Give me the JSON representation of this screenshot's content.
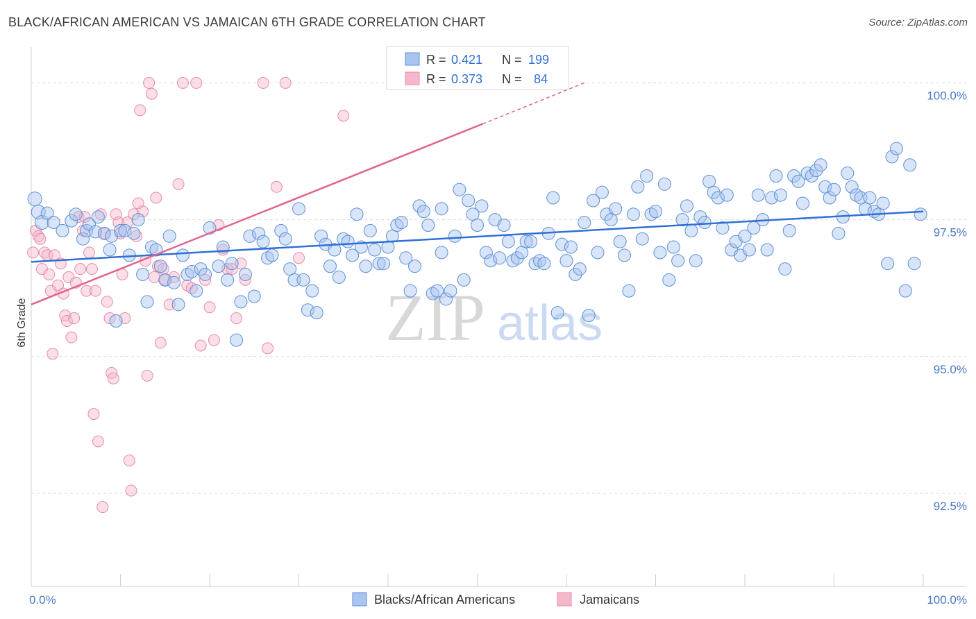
{
  "title": "BLACK/AFRICAN AMERICAN VS JAMAICAN 6TH GRADE CORRELATION CHART",
  "source": "Source: ZipAtlas.com",
  "watermark": {
    "zip": "ZIP",
    "atlas": "atlas"
  },
  "colors": {
    "blue_fill": "#a9c4ee",
    "blue_stroke": "#5b8fd9",
    "blue_line": "#2f6fd6",
    "pink_fill": "#f5b8cb",
    "pink_stroke": "#e98aa9",
    "pink_line": "#e0648e",
    "grid": "#d9d9d9",
    "tick_label": "#4a78c8"
  },
  "legend": {
    "rows": [
      {
        "r_label": "R =",
        "r_value": "0.421",
        "n_label": "N =",
        "n_value": "199"
      },
      {
        "r_label": "R =",
        "r_value": "0.373",
        "n_label": "N =",
        "n_value": "84"
      }
    ]
  },
  "chart_data": {
    "type": "scatter",
    "title": "BLACK/AFRICAN AMERICAN VS JAMAICAN 6TH GRADE CORRELATION CHART",
    "xlabel": "",
    "ylabel": "6th Grade",
    "xlim": [
      0,
      100
    ],
    "ylim": [
      90.8,
      100.5
    ],
    "x_tick_labels": [
      "0.0%",
      "100.0%"
    ],
    "y_ticks": [
      92.5,
      95.0,
      97.5,
      100.0
    ],
    "y_tick_labels": [
      "92.5%",
      "95.0%",
      "97.5%",
      "100.0%"
    ],
    "grid": "horizontal dashed",
    "legend_position": "top-center",
    "series": [
      {
        "name": "Blacks/African Americans",
        "color": "#5b8fd9",
        "R": 0.421,
        "N": 199,
        "trend": {
          "x": [
            0,
            100
          ],
          "y": [
            96.73,
            97.65
          ]
        },
        "points": [
          [
            0.4,
            97.88
          ],
          [
            0.8,
            97.64
          ],
          [
            1.2,
            97.45
          ],
          [
            1.8,
            97.62
          ],
          [
            2.5,
            97.45
          ],
          [
            3.5,
            97.3
          ],
          [
            4.5,
            97.48
          ],
          [
            5.0,
            97.6
          ],
          [
            5.8,
            97.15
          ],
          [
            6.2,
            97.3
          ],
          [
            6.5,
            97.42
          ],
          [
            7.5,
            97.55
          ],
          [
            7.2,
            97.28
          ],
          [
            8.2,
            97.25
          ],
          [
            9.0,
            97.2
          ],
          [
            10.0,
            97.3
          ],
          [
            10.5,
            97.3
          ],
          [
            11.5,
            97.25
          ],
          [
            12.0,
            97.5
          ],
          [
            8.8,
            96.95
          ],
          [
            9.5,
            95.65
          ],
          [
            11.0,
            96.85
          ],
          [
            12.5,
            96.5
          ],
          [
            13.0,
            96.0
          ],
          [
            13.5,
            97.0
          ],
          [
            14.0,
            96.95
          ],
          [
            14.5,
            96.65
          ],
          [
            15.0,
            96.4
          ],
          [
            15.5,
            97.2
          ],
          [
            16.0,
            96.35
          ],
          [
            16.5,
            95.95
          ],
          [
            17.0,
            96.85
          ],
          [
            17.5,
            96.5
          ],
          [
            18.0,
            96.55
          ],
          [
            18.5,
            96.2
          ],
          [
            19.0,
            96.6
          ],
          [
            19.5,
            96.5
          ],
          [
            20.0,
            97.35
          ],
          [
            21.0,
            96.65
          ],
          [
            21.5,
            97.0
          ],
          [
            22.0,
            96.4
          ],
          [
            22.5,
            96.7
          ],
          [
            23.0,
            95.3
          ],
          [
            23.5,
            96.0
          ],
          [
            24.0,
            96.5
          ],
          [
            24.5,
            97.2
          ],
          [
            25.0,
            96.1
          ],
          [
            25.5,
            97.25
          ],
          [
            26.0,
            97.1
          ],
          [
            26.5,
            96.8
          ],
          [
            27.0,
            96.85
          ],
          [
            28.0,
            97.3
          ],
          [
            28.5,
            97.15
          ],
          [
            29.0,
            96.6
          ],
          [
            29.5,
            96.4
          ],
          [
            30.0,
            97.7
          ],
          [
            30.5,
            96.4
          ],
          [
            31.0,
            95.85
          ],
          [
            31.5,
            96.2
          ],
          [
            32.0,
            95.8
          ],
          [
            32.5,
            97.2
          ],
          [
            33.0,
            97.05
          ],
          [
            33.5,
            96.65
          ],
          [
            34.0,
            96.95
          ],
          [
            34.5,
            96.45
          ],
          [
            35.0,
            97.15
          ],
          [
            35.5,
            97.1
          ],
          [
            36.0,
            96.85
          ],
          [
            36.5,
            97.6
          ],
          [
            37.0,
            97.0
          ],
          [
            37.5,
            96.65
          ],
          [
            38.0,
            97.3
          ],
          [
            38.5,
            96.95
          ],
          [
            39.0,
            96.7
          ],
          [
            39.5,
            96.7
          ],
          [
            40.0,
            97.0
          ],
          [
            40.5,
            97.2
          ],
          [
            41.0,
            97.4
          ],
          [
            41.5,
            97.45
          ],
          [
            42.0,
            96.8
          ],
          [
            42.5,
            96.2
          ],
          [
            43.0,
            96.65
          ],
          [
            43.5,
            97.75
          ],
          [
            44.0,
            97.65
          ],
          [
            44.5,
            97.4
          ],
          [
            45.0,
            96.15
          ],
          [
            45.5,
            96.2
          ],
          [
            46.0,
            97.7
          ],
          [
            46.5,
            96.05
          ],
          [
            47.0,
            96.2
          ],
          [
            46.0,
            96.9
          ],
          [
            47.5,
            97.2
          ],
          [
            48.0,
            98.05
          ],
          [
            48.5,
            96.4
          ],
          [
            49.0,
            97.85
          ],
          [
            49.5,
            97.6
          ],
          [
            50.0,
            97.4
          ],
          [
            50.5,
            97.75
          ],
          [
            51.0,
            96.9
          ],
          [
            51.5,
            96.75
          ],
          [
            52.0,
            97.5
          ],
          [
            52.5,
            96.8
          ],
          [
            53.0,
            97.4
          ],
          [
            53.5,
            97.1
          ],
          [
            54.0,
            96.75
          ],
          [
            54.5,
            96.8
          ],
          [
            55.0,
            96.9
          ],
          [
            55.5,
            97.1
          ],
          [
            56.0,
            97.1
          ],
          [
            56.5,
            96.7
          ],
          [
            57.0,
            96.75
          ],
          [
            57.5,
            96.7
          ],
          [
            58.0,
            97.25
          ],
          [
            58.5,
            97.9
          ],
          [
            59.0,
            95.8
          ],
          [
            59.5,
            97.05
          ],
          [
            60.0,
            96.75
          ],
          [
            60.5,
            97.0
          ],
          [
            61.0,
            96.5
          ],
          [
            61.5,
            96.6
          ],
          [
            62.0,
            97.45
          ],
          [
            62.5,
            95.75
          ],
          [
            63.0,
            97.85
          ],
          [
            63.5,
            96.9
          ],
          [
            64.0,
            98.0
          ],
          [
            64.5,
            97.6
          ],
          [
            65.0,
            97.5
          ],
          [
            65.5,
            97.7
          ],
          [
            66.0,
            97.1
          ],
          [
            66.5,
            96.85
          ],
          [
            67.0,
            96.2
          ],
          [
            67.5,
            97.6
          ],
          [
            68.0,
            98.1
          ],
          [
            68.5,
            97.15
          ],
          [
            69.0,
            98.3
          ],
          [
            69.5,
            97.6
          ],
          [
            70.0,
            97.65
          ],
          [
            70.5,
            96.9
          ],
          [
            71.0,
            98.15
          ],
          [
            71.5,
            96.4
          ],
          [
            72.0,
            97.0
          ],
          [
            72.5,
            96.75
          ],
          [
            73.0,
            97.5
          ],
          [
            73.5,
            97.75
          ],
          [
            74.0,
            97.3
          ],
          [
            74.5,
            96.75
          ],
          [
            75.0,
            97.55
          ],
          [
            75.5,
            97.45
          ],
          [
            76.0,
            98.2
          ],
          [
            76.5,
            98.0
          ],
          [
            77.0,
            97.9
          ],
          [
            77.5,
            97.35
          ],
          [
            78.0,
            97.95
          ],
          [
            78.5,
            96.95
          ],
          [
            79.0,
            97.1
          ],
          [
            79.5,
            96.85
          ],
          [
            80.0,
            97.2
          ],
          [
            80.5,
            96.95
          ],
          [
            81.0,
            97.35
          ],
          [
            81.5,
            97.95
          ],
          [
            82.0,
            97.5
          ],
          [
            82.5,
            96.95
          ],
          [
            83.0,
            97.9
          ],
          [
            83.5,
            98.3
          ],
          [
            84.0,
            97.95
          ],
          [
            84.5,
            96.6
          ],
          [
            85.0,
            97.3
          ],
          [
            85.5,
            98.3
          ],
          [
            86.0,
            98.2
          ],
          [
            86.5,
            97.8
          ],
          [
            87.0,
            98.35
          ],
          [
            87.5,
            98.3
          ],
          [
            88.0,
            98.4
          ],
          [
            88.5,
            98.5
          ],
          [
            89.0,
            98.1
          ],
          [
            89.5,
            97.9
          ],
          [
            90.0,
            98.05
          ],
          [
            90.5,
            97.25
          ],
          [
            91.0,
            97.55
          ],
          [
            91.5,
            98.35
          ],
          [
            92.0,
            98.1
          ],
          [
            92.5,
            97.95
          ],
          [
            93.0,
            97.9
          ],
          [
            93.5,
            97.7
          ],
          [
            94.0,
            97.9
          ],
          [
            94.5,
            97.65
          ],
          [
            95.0,
            97.6
          ],
          [
            95.5,
            97.8
          ],
          [
            96.0,
            96.7
          ],
          [
            96.5,
            98.65
          ],
          [
            97.0,
            98.8
          ],
          [
            98.0,
            96.2
          ],
          [
            98.5,
            98.5
          ],
          [
            99.0,
            96.7
          ],
          [
            99.7,
            97.6
          ]
        ]
      },
      {
        "name": "Jamaicans",
        "color": "#e98aa9",
        "R": 0.373,
        "N": 84,
        "trend": {
          "x": [
            0,
            50.6
          ],
          "y": [
            95.95,
            99.25
          ]
        },
        "trend_dashed": {
          "x": [
            50.6,
            62.0
          ],
          "y": [
            99.25,
            100.0
          ]
        },
        "points": [
          [
            0.2,
            96.9
          ],
          [
            0.5,
            97.3
          ],
          [
            0.8,
            97.2
          ],
          [
            1.0,
            97.15
          ],
          [
            1.2,
            96.6
          ],
          [
            1.5,
            96.9
          ],
          [
            1.8,
            96.85
          ],
          [
            2.0,
            96.5
          ],
          [
            2.2,
            96.2
          ],
          [
            2.4,
            95.05
          ],
          [
            2.6,
            96.85
          ],
          [
            3.0,
            96.3
          ],
          [
            3.3,
            96.7
          ],
          [
            3.6,
            96.15
          ],
          [
            3.8,
            95.75
          ],
          [
            4.0,
            95.65
          ],
          [
            4.2,
            96.45
          ],
          [
            4.5,
            95.35
          ],
          [
            4.8,
            95.7
          ],
          [
            5.0,
            96.35
          ],
          [
            5.3,
            97.55
          ],
          [
            5.5,
            96.6
          ],
          [
            5.8,
            97.3
          ],
          [
            6.0,
            97.55
          ],
          [
            6.2,
            96.2
          ],
          [
            6.5,
            96.9
          ],
          [
            6.8,
            96.6
          ],
          [
            7.0,
            93.95
          ],
          [
            7.2,
            96.2
          ],
          [
            7.5,
            93.45
          ],
          [
            7.8,
            97.6
          ],
          [
            8.0,
            92.25
          ],
          [
            8.2,
            97.25
          ],
          [
            8.5,
            96.0
          ],
          [
            8.8,
            95.7
          ],
          [
            9.0,
            94.7
          ],
          [
            9.2,
            94.6
          ],
          [
            9.5,
            97.6
          ],
          [
            9.8,
            97.45
          ],
          [
            10.0,
            97.25
          ],
          [
            10.2,
            96.5
          ],
          [
            10.5,
            95.7
          ],
          [
            10.8,
            97.45
          ],
          [
            11.0,
            93.1
          ],
          [
            11.2,
            92.55
          ],
          [
            11.5,
            97.6
          ],
          [
            11.8,
            97.2
          ],
          [
            12.0,
            97.8
          ],
          [
            12.2,
            99.5
          ],
          [
            12.5,
            97.65
          ],
          [
            12.8,
            96.75
          ],
          [
            13.0,
            94.65
          ],
          [
            13.2,
            100.0
          ],
          [
            13.5,
            99.8
          ],
          [
            13.8,
            96.45
          ],
          [
            14.0,
            97.9
          ],
          [
            14.2,
            96.65
          ],
          [
            14.5,
            95.25
          ],
          [
            14.8,
            96.6
          ],
          [
            15.0,
            96.4
          ],
          [
            15.5,
            95.95
          ],
          [
            16.0,
            96.45
          ],
          [
            16.5,
            98.15
          ],
          [
            17.0,
            100.0
          ],
          [
            17.5,
            96.3
          ],
          [
            18.0,
            96.25
          ],
          [
            18.5,
            100.0
          ],
          [
            19.0,
            95.2
          ],
          [
            19.5,
            96.4
          ],
          [
            20.0,
            95.9
          ],
          [
            20.5,
            95.3
          ],
          [
            21.0,
            97.4
          ],
          [
            21.5,
            96.95
          ],
          [
            22.0,
            96.6
          ],
          [
            22.5,
            96.6
          ],
          [
            23.0,
            95.7
          ],
          [
            23.5,
            96.7
          ],
          [
            24.0,
            96.4
          ],
          [
            26.0,
            100.0
          ],
          [
            26.5,
            95.15
          ],
          [
            27.5,
            98.1
          ],
          [
            28.5,
            100.0
          ],
          [
            30.0,
            96.8
          ],
          [
            35.0,
            99.4
          ]
        ]
      }
    ]
  },
  "bottom_legend": [
    {
      "label": "Blacks/African Americans"
    },
    {
      "label": "Jamaicans"
    }
  ]
}
